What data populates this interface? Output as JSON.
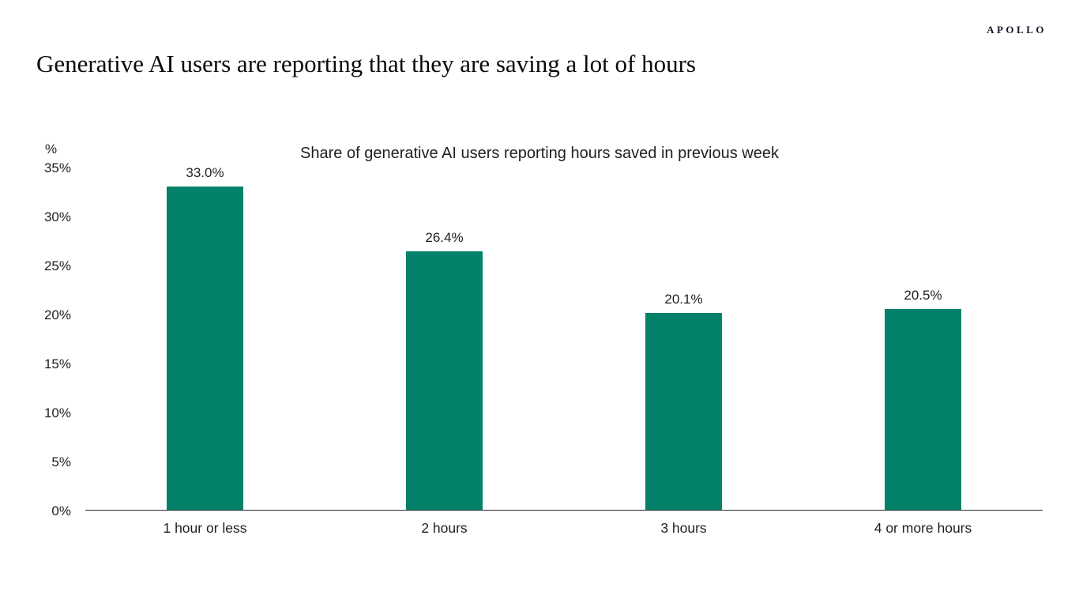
{
  "header": {
    "logo": "APOLLO",
    "title": "Generative AI users are reporting that they are saving a lot of hours"
  },
  "chart_data": {
    "type": "bar",
    "title": "Share of generative AI users reporting hours saved in previous week",
    "categories": [
      "1 hour or less",
      "2 hours",
      "3 hours",
      "4 or more hours"
    ],
    "values": [
      33.0,
      26.4,
      20.1,
      20.5
    ],
    "value_labels": [
      "33.0%",
      "26.4%",
      "20.1%",
      "20.5%"
    ],
    "y_axis": {
      "unit_label": "%",
      "tick_labels": [
        "0%",
        "5%",
        "10%",
        "15%",
        "20%",
        "25%",
        "30%",
        "35%"
      ],
      "tick_values": [
        0,
        5,
        10,
        15,
        20,
        25,
        30,
        35
      ],
      "min": 0,
      "max": 35
    },
    "grid": false,
    "legend": "none",
    "colors": {
      "bar": "#038269",
      "axis_line": "#2b2b2b",
      "text": "#1f1f1f"
    }
  }
}
